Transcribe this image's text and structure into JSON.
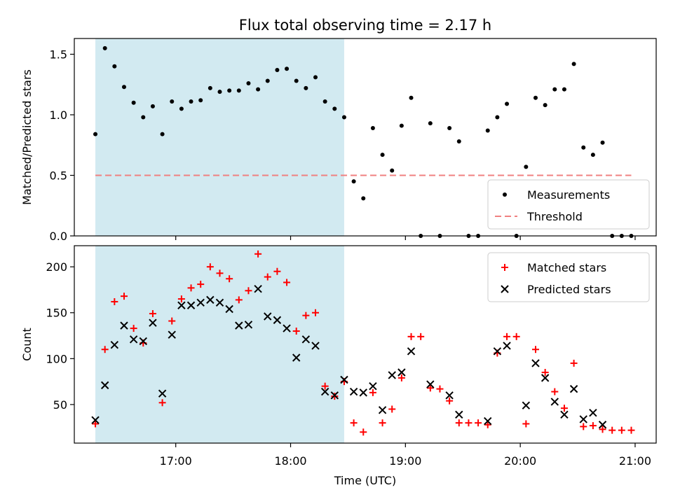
{
  "chart_data": {
    "title": "Flux total observing time = 2.17 h",
    "xlabel": "Time (UTC)",
    "xlim": [
      "16:07",
      "21:11"
    ],
    "x_ticks": [
      "17:00",
      "18:00",
      "19:00",
      "20:00",
      "21:00"
    ],
    "shaded_interval": [
      "16:18",
      "18:28"
    ],
    "colors": {
      "shade": "#add8e6",
      "measurements": "#000000",
      "threshold": "#f08080",
      "matched": "#ff0000",
      "predicted": "#000000"
    },
    "panels": [
      {
        "type": "scatter",
        "ylabel": "Matched/Predicted stars",
        "ylim": [
          0,
          1.63
        ],
        "y_ticks": [
          "0.0",
          "0.5",
          "1.0",
          "1.5"
        ],
        "legend_position": "lower-right",
        "series": [
          {
            "name": "Measurements",
            "marker": "dot",
            "points": [
              [
                "16:18",
                0.84
              ],
              [
                "16:23",
                1.55
              ],
              [
                "16:28",
                1.4
              ],
              [
                "16:33",
                1.23
              ],
              [
                "16:38",
                1.1
              ],
              [
                "16:43",
                0.98
              ],
              [
                "16:48",
                1.07
              ],
              [
                "16:53",
                0.84
              ],
              [
                "16:58",
                1.11
              ],
              [
                "17:03",
                1.05
              ],
              [
                "17:08",
                1.11
              ],
              [
                "17:13",
                1.12
              ],
              [
                "17:18",
                1.22
              ],
              [
                "17:23",
                1.19
              ],
              [
                "17:28",
                1.2
              ],
              [
                "17:33",
                1.2
              ],
              [
                "17:38",
                1.26
              ],
              [
                "17:43",
                1.21
              ],
              [
                "17:48",
                1.28
              ],
              [
                "17:53",
                1.37
              ],
              [
                "17:58",
                1.38
              ],
              [
                "18:03",
                1.28
              ],
              [
                "18:08",
                1.22
              ],
              [
                "18:13",
                1.31
              ],
              [
                "18:18",
                1.11
              ],
              [
                "18:23",
                1.05
              ],
              [
                "18:28",
                0.98
              ],
              [
                "18:33",
                0.45
              ],
              [
                "18:38",
                0.31
              ],
              [
                "18:43",
                0.89
              ],
              [
                "18:48",
                0.67
              ],
              [
                "18:53",
                0.54
              ],
              [
                "18:58",
                0.91
              ],
              [
                "19:03",
                1.14
              ],
              [
                "19:08",
                0.0
              ],
              [
                "19:13",
                0.93
              ],
              [
                "19:18",
                0.0
              ],
              [
                "19:23",
                0.89
              ],
              [
                "19:28",
                0.78
              ],
              [
                "19:33",
                0.0
              ],
              [
                "19:38",
                0.0
              ],
              [
                "19:43",
                0.87
              ],
              [
                "19:48",
                0.98
              ],
              [
                "19:53",
                1.09
              ],
              [
                "19:58",
                0.0
              ],
              [
                "20:03",
                0.57
              ],
              [
                "20:08",
                1.14
              ],
              [
                "20:13",
                1.08
              ],
              [
                "20:18",
                1.21
              ],
              [
                "20:23",
                1.21
              ],
              [
                "20:28",
                1.42
              ],
              [
                "20:33",
                0.73
              ],
              [
                "20:38",
                0.67
              ],
              [
                "20:43",
                0.77
              ],
              [
                "20:48",
                0.0
              ],
              [
                "20:53",
                0.0
              ],
              [
                "20:58",
                0.0
              ]
            ]
          },
          {
            "name": "Threshold",
            "marker": "dashed-line",
            "points": [
              [
                "16:18",
                0.5
              ],
              [
                "20:58",
                0.5
              ]
            ]
          }
        ]
      },
      {
        "type": "scatter",
        "ylabel": "Count",
        "ylim": [
          8,
          223
        ],
        "y_ticks": [
          "50",
          "100",
          "150",
          "200"
        ],
        "legend_position": "top-right",
        "series": [
          {
            "name": "Matched stars",
            "marker": "plus",
            "points": [
              [
                "16:18",
                29
              ],
              [
                "16:23",
                110
              ],
              [
                "16:28",
                162
              ],
              [
                "16:33",
                168
              ],
              [
                "16:38",
                133
              ],
              [
                "16:43",
                117
              ],
              [
                "16:48",
                149
              ],
              [
                "16:53",
                52
              ],
              [
                "16:58",
                141
              ],
              [
                "17:03",
                165
              ],
              [
                "17:08",
                177
              ],
              [
                "17:13",
                181
              ],
              [
                "17:18",
                200
              ],
              [
                "17:23",
                193
              ],
              [
                "17:28",
                187
              ],
              [
                "17:33",
                164
              ],
              [
                "17:38",
                174
              ],
              [
                "17:43",
                214
              ],
              [
                "17:48",
                189
              ],
              [
                "17:53",
                195
              ],
              [
                "17:58",
                183
              ],
              [
                "18:03",
                130
              ],
              [
                "18:08",
                147
              ],
              [
                "18:13",
                150
              ],
              [
                "18:18",
                70
              ],
              [
                "18:23",
                59
              ],
              [
                "18:28",
                75
              ],
              [
                "18:33",
                30
              ],
              [
                "18:38",
                20
              ],
              [
                "18:43",
                63
              ],
              [
                "18:48",
                30
              ],
              [
                "18:53",
                45
              ],
              [
                "18:58",
                79
              ],
              [
                "19:03",
                124
              ],
              [
                "19:08",
                124
              ],
              [
                "19:13",
                68
              ],
              [
                "19:18",
                67
              ],
              [
                "19:23",
                54
              ],
              [
                "19:28",
                30
              ],
              [
                "19:33",
                30
              ],
              [
                "19:38",
                30
              ],
              [
                "19:43",
                28
              ],
              [
                "19:48",
                106
              ],
              [
                "19:53",
                124
              ],
              [
                "19:58",
                124
              ],
              [
                "20:03",
                29
              ],
              [
                "20:08",
                110
              ],
              [
                "20:13",
                85
              ],
              [
                "20:18",
                64
              ],
              [
                "20:23",
                46
              ],
              [
                "20:28",
                95
              ],
              [
                "20:33",
                26
              ],
              [
                "20:38",
                27
              ],
              [
                "20:43",
                23
              ],
              [
                "20:48",
                22
              ],
              [
                "20:53",
                22
              ],
              [
                "20:58",
                22
              ]
            ]
          },
          {
            "name": "Predicted stars",
            "marker": "x",
            "points": [
              [
                "16:18",
                33
              ],
              [
                "16:23",
                71
              ],
              [
                "16:28",
                115
              ],
              [
                "16:33",
                136
              ],
              [
                "16:38",
                121
              ],
              [
                "16:43",
                119
              ],
              [
                "16:48",
                139
              ],
              [
                "16:53",
                62
              ],
              [
                "16:58",
                126
              ],
              [
                "17:03",
                158
              ],
              [
                "17:08",
                158
              ],
              [
                "17:13",
                161
              ],
              [
                "17:18",
                164
              ],
              [
                "17:23",
                161
              ],
              [
                "17:28",
                154
              ],
              [
                "17:33",
                136
              ],
              [
                "17:38",
                137
              ],
              [
                "17:43",
                176
              ],
              [
                "17:48",
                146
              ],
              [
                "17:53",
                142
              ],
              [
                "17:58",
                133
              ],
              [
                "18:03",
                101
              ],
              [
                "18:08",
                121
              ],
              [
                "18:13",
                114
              ],
              [
                "18:18",
                64
              ],
              [
                "18:23",
                60
              ],
              [
                "18:28",
                77
              ],
              [
                "18:33",
                64
              ],
              [
                "18:38",
                63
              ],
              [
                "18:43",
                70
              ],
              [
                "18:48",
                44
              ],
              [
                "18:53",
                82
              ],
              [
                "18:58",
                85
              ],
              [
                "19:03",
                108
              ],
              [
                "19:13",
                72
              ],
              [
                "19:23",
                60
              ],
              [
                "19:28",
                39
              ],
              [
                "19:43",
                32
              ],
              [
                "19:48",
                108
              ],
              [
                "19:53",
                114
              ],
              [
                "20:03",
                49
              ],
              [
                "20:08",
                95
              ],
              [
                "20:13",
                79
              ],
              [
                "20:18",
                53
              ],
              [
                "20:23",
                39
              ],
              [
                "20:28",
                67
              ],
              [
                "20:33",
                34
              ],
              [
                "20:38",
                41
              ],
              [
                "20:43",
                28
              ]
            ]
          }
        ]
      }
    ]
  }
}
